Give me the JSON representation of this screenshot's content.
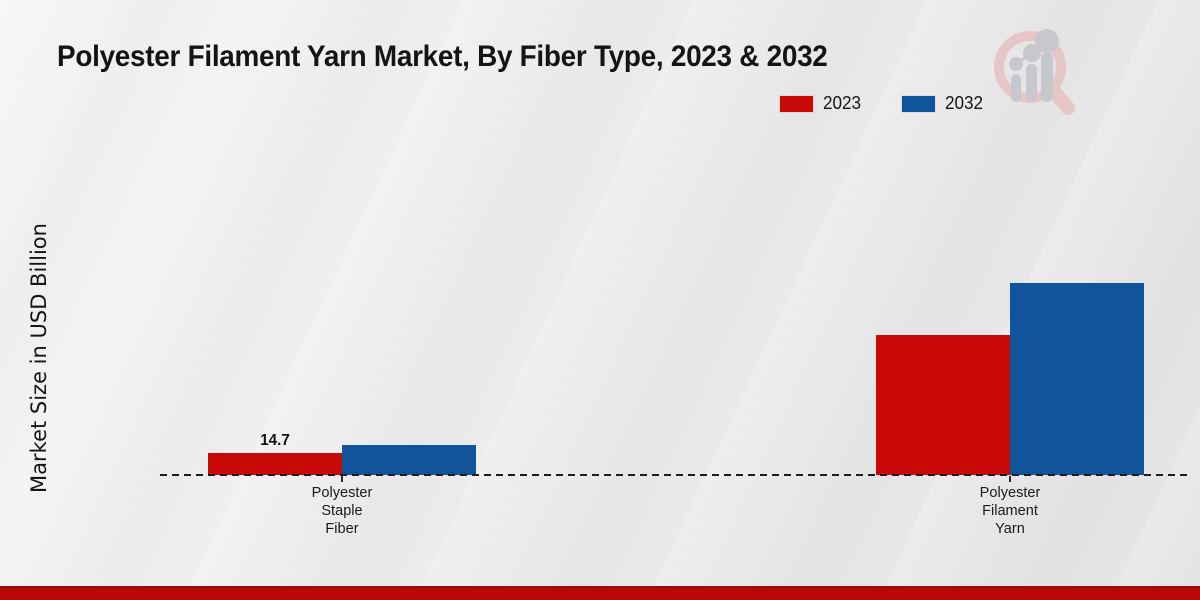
{
  "chart_data": {
    "type": "bar",
    "title": "Polyester Filament Yarn Market, By Fiber Type, 2023 & 2032",
    "xlabel": "",
    "ylabel": "Market Size in USD Billion",
    "categories": [
      [
        "Polyester",
        "Staple",
        "Fiber"
      ],
      [
        "Polyester",
        "Filament",
        "Yarn"
      ]
    ],
    "series": [
      {
        "name": "2023",
        "color": "#c90808",
        "values": [
          14.7,
          93.5
        ],
        "value_labels": [
          "14.7",
          ""
        ]
      },
      {
        "name": "2032",
        "color": "#10549c",
        "values": [
          20.0,
          128.3
        ],
        "value_labels": [
          "",
          ""
        ]
      }
    ],
    "ylim": [
      0,
      215
    ],
    "grid": false,
    "legend_position": "top-right",
    "baseline_style": "dashed",
    "annotations": [
      "Only the 2023 Polyester Staple Fiber bar carries a printed value label: 14.7"
    ]
  },
  "page": {
    "background_color": "#ececec",
    "footer_strip_color": "#b40909",
    "axis_color": "#1d1d1d"
  },
  "watermark": {
    "name": "magnifier-bar-chart-logo",
    "ring_color": "#e7c6c8",
    "bars_color": "#c6c8cd"
  }
}
